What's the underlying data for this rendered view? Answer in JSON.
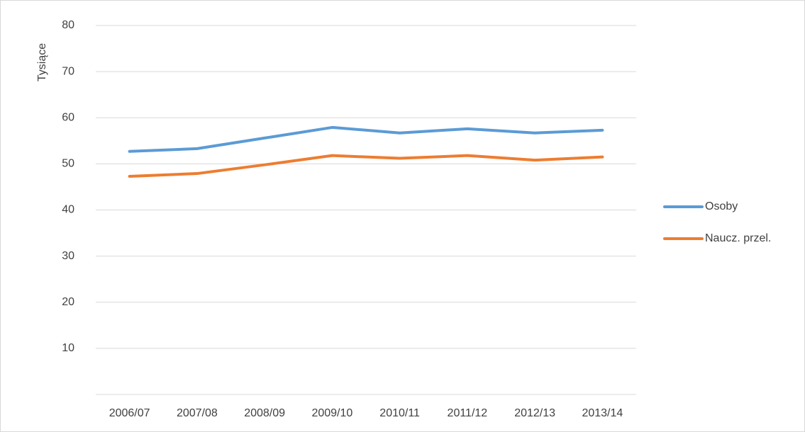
{
  "chart_data": {
    "type": "line",
    "y_label": "Tysiące",
    "categories": [
      "2006/07",
      "2007/08",
      "2008/09",
      "2009/10",
      "2010/11",
      "2011/12",
      "2012/13",
      "2013/14"
    ],
    "series": [
      {
        "name": "Osoby",
        "color": "#5b9bd5",
        "values": [
          52.7,
          53.3,
          55.6,
          57.9,
          56.7,
          57.6,
          56.7,
          57.3
        ]
      },
      {
        "name": "Naucz. przel.",
        "color": "#ed7d31",
        "values": [
          47.3,
          47.9,
          49.8,
          51.8,
          51.2,
          51.8,
          50.8,
          51.5
        ]
      }
    ],
    "ylim": [
      0,
      80
    ],
    "yticks": [
      10,
      20,
      30,
      40,
      50,
      60,
      70,
      80
    ],
    "grid": true,
    "legend": "right"
  }
}
